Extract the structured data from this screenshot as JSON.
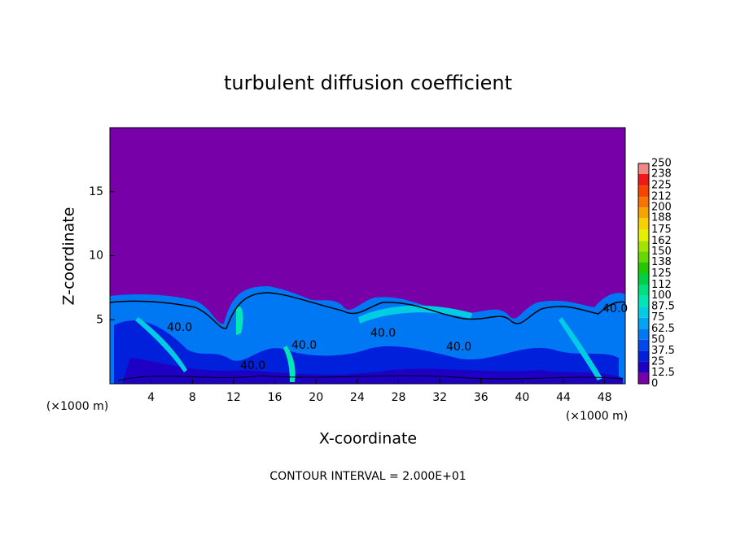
{
  "chart_data": {
    "type": "contour",
    "title": "turbulent diffusion coefficient",
    "xlabel": "X-coordinate",
    "ylabel": "Z-coordinate",
    "x_unit_label": "(×1000 m)",
    "footnote": "CONTOUR INTERVAL = 2.000E+01",
    "contour_labels": [
      "40.0",
      "40.0",
      "40.0",
      "40.0",
      "40.0",
      "40.0"
    ],
    "xlim": [
      0,
      50
    ],
    "xticks": [
      4,
      8,
      12,
      16,
      20,
      24,
      28,
      32,
      36,
      40,
      44,
      48
    ],
    "ylim": [
      0,
      20
    ],
    "yticks": [
      5,
      10,
      15
    ],
    "colorbar": {
      "levels": [
        0,
        12.5,
        25,
        37.5,
        50,
        62.5,
        75,
        87.5,
        100,
        112,
        125,
        138,
        150,
        162,
        175,
        188,
        200,
        212,
        225,
        238,
        250
      ],
      "colors": [
        "#7800a8",
        "#1e00c4",
        "#0020dc",
        "#0048ec",
        "#0078f4",
        "#00a4f0",
        "#00cce4",
        "#00e6b4",
        "#00e080",
        "#00d044",
        "#24c800",
        "#64d800",
        "#a4e200",
        "#e4f000",
        "#f8d000",
        "#f8a400",
        "#f87400",
        "#f84400",
        "#f01818",
        "#f08888"
      ]
    }
  }
}
